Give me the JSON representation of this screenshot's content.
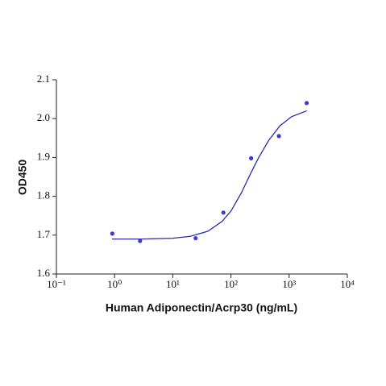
{
  "chart_data": {
    "type": "scatter",
    "xlabel": "Human Adiponectin/Acrp30 (ng/mL)",
    "ylabel": "OD450",
    "x": [
      0.914,
      2.74,
      24.7,
      74.1,
      222,
      667,
      2000
    ],
    "values": [
      1.704,
      1.685,
      1.692,
      1.758,
      1.898,
      1.955,
      2.04
    ],
    "color": "#3a3ad8",
    "curve": {
      "color": "#2a2aae",
      "x": [
        0.9,
        3,
        10,
        20,
        40,
        70,
        100,
        150,
        220,
        300,
        450,
        700,
        1100,
        2000
      ],
      "y": [
        1.69,
        1.69,
        1.692,
        1.697,
        1.71,
        1.735,
        1.762,
        1.808,
        1.86,
        1.9,
        1.945,
        1.982,
        2.005,
        2.02
      ]
    },
    "xlog": true,
    "xlim": [
      0.1,
      10000
    ],
    "xticks": [
      {
        "value": 0.1,
        "label": "10⁻¹"
      },
      {
        "value": 1,
        "label": "10⁰"
      },
      {
        "value": 10,
        "label": "10¹"
      },
      {
        "value": 100,
        "label": "10²"
      },
      {
        "value": 1000,
        "label": "10³"
      },
      {
        "value": 10000,
        "label": "10⁴"
      }
    ],
    "ylim": [
      1.6,
      2.1
    ],
    "yticks": [
      1.6,
      1.7,
      1.8,
      1.9,
      {
        "value": 2,
        "label": "2.0"
      },
      2.1
    ]
  }
}
